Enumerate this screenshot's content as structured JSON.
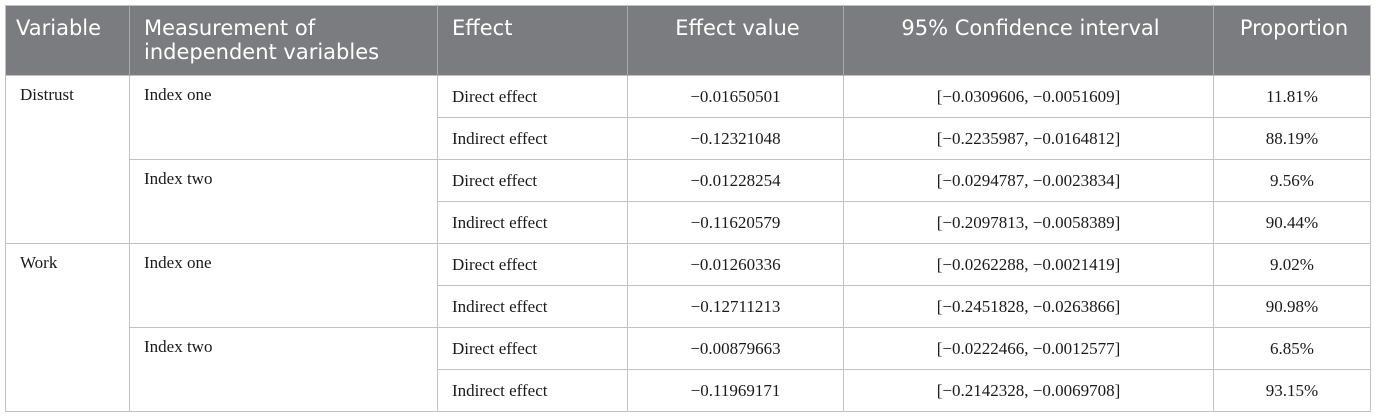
{
  "table": {
    "headers": {
      "variable": "Variable",
      "measurement": "Measurement of independent variables",
      "effect": "Effect",
      "effect_value": "Effect value",
      "ci": "95% Confidence interval",
      "proportion": "Proportion"
    },
    "groups": [
      {
        "variable": "Distrust",
        "subgroups": [
          {
            "measurement": "Index one",
            "rows": [
              {
                "effect": "Direct effect",
                "value": "−0.01650501",
                "ci": "[−0.0309606, −0.0051609]",
                "proportion": "11.81%"
              },
              {
                "effect": "Indirect effect",
                "value": "−0.12321048",
                "ci": "[−0.2235987, −0.0164812]",
                "proportion": "88.19%"
              }
            ]
          },
          {
            "measurement": "Index two",
            "rows": [
              {
                "effect": "Direct effect",
                "value": "−0.01228254",
                "ci": "[−0.0294787, −0.0023834]",
                "proportion": "9.56%"
              },
              {
                "effect": "Indirect effect",
                "value": "−0.11620579",
                "ci": "[−0.2097813, −0.0058389]",
                "proportion": "90.44%"
              }
            ]
          }
        ]
      },
      {
        "variable": "Work",
        "subgroups": [
          {
            "measurement": "Index one",
            "rows": [
              {
                "effect": "Direct effect",
                "value": "−0.01260336",
                "ci": "[−0.0262288, −0.0021419]",
                "proportion": "9.02%"
              },
              {
                "effect": "Indirect effect",
                "value": "−0.12711213",
                "ci": "[−0.2451828, −0.0263866]",
                "proportion": "90.98%"
              }
            ]
          },
          {
            "measurement": "Index two",
            "rows": [
              {
                "effect": "Direct effect",
                "value": "−0.00879663",
                "ci": "[−0.0222466, −0.0012577]",
                "proportion": "6.85%"
              },
              {
                "effect": "Indirect effect",
                "value": "−0.11969171",
                "ci": "[−0.2142328, −0.0069708]",
                "proportion": "93.15%"
              }
            ]
          }
        ]
      }
    ]
  }
}
